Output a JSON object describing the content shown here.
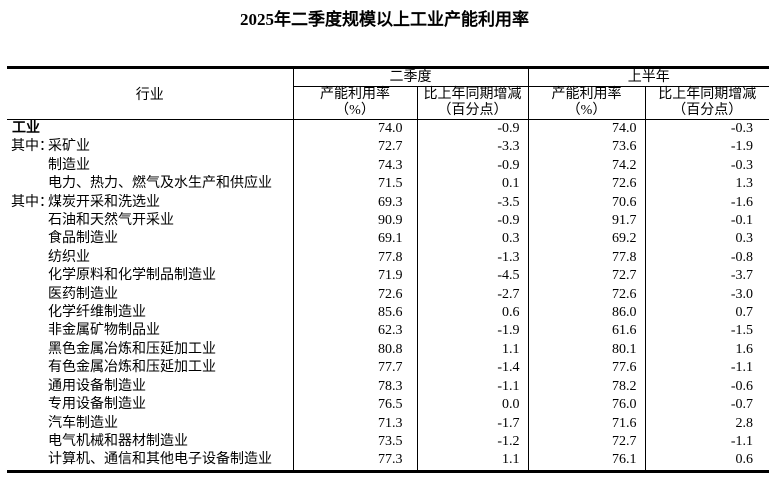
{
  "title": "2025年二季度规模以上工业产能利用率",
  "colors": {
    "text": "#000000",
    "background": "#ffffff",
    "border": "#000000"
  },
  "table": {
    "industry_header": "行业",
    "groups": [
      {
        "label": "二季度",
        "sub_headers": [
          {
            "line1": "产能利用率",
            "line2": "（%）"
          },
          {
            "line1": "比上年同期增减",
            "line2": "（百分点）"
          }
        ]
      },
      {
        "label": "上半年",
        "sub_headers": [
          {
            "line1": "产能利用率",
            "line2": "（%）"
          },
          {
            "line1": "比上年同期增减",
            "line2": "（百分点）"
          }
        ]
      }
    ],
    "rows": [
      {
        "prefix": "",
        "name": "工业",
        "bold": true,
        "flush": true,
        "values": [
          "74.0",
          "-0.9",
          "74.0",
          "-0.3"
        ]
      },
      {
        "prefix": "其中：",
        "name": "采矿业",
        "values": [
          "72.7",
          "-3.3",
          "73.6",
          "-1.9"
        ]
      },
      {
        "prefix": "",
        "name": "制造业",
        "values": [
          "74.3",
          "-0.9",
          "74.2",
          "-0.3"
        ]
      },
      {
        "prefix": "",
        "name": "电力、热力、燃气及水生产和供应业",
        "values": [
          "71.5",
          "0.1",
          "72.6",
          "1.3"
        ]
      },
      {
        "prefix": "其中：",
        "name": "煤炭开采和洗选业",
        "values": [
          "69.3",
          "-3.5",
          "70.6",
          "-1.6"
        ]
      },
      {
        "prefix": "",
        "name": "石油和天然气开采业",
        "values": [
          "90.9",
          "-0.9",
          "91.7",
          "-0.1"
        ]
      },
      {
        "prefix": "",
        "name": "食品制造业",
        "values": [
          "69.1",
          "0.3",
          "69.2",
          "0.3"
        ]
      },
      {
        "prefix": "",
        "name": "纺织业",
        "values": [
          "77.8",
          "-1.3",
          "77.8",
          "-0.8"
        ]
      },
      {
        "prefix": "",
        "name": "化学原料和化学制品制造业",
        "values": [
          "71.9",
          "-4.5",
          "72.7",
          "-3.7"
        ]
      },
      {
        "prefix": "",
        "name": "医药制造业",
        "values": [
          "72.6",
          "-2.7",
          "72.6",
          "-3.0"
        ]
      },
      {
        "prefix": "",
        "name": "化学纤维制造业",
        "values": [
          "85.6",
          "0.6",
          "86.0",
          "0.7"
        ]
      },
      {
        "prefix": "",
        "name": "非金属矿物制品业",
        "values": [
          "62.3",
          "-1.9",
          "61.6",
          "-1.5"
        ]
      },
      {
        "prefix": "",
        "name": "黑色金属冶炼和压延加工业",
        "values": [
          "80.8",
          "1.1",
          "80.1",
          "1.6"
        ]
      },
      {
        "prefix": "",
        "name": "有色金属冶炼和压延加工业",
        "values": [
          "77.7",
          "-1.4",
          "77.6",
          "-1.1"
        ]
      },
      {
        "prefix": "",
        "name": "通用设备制造业",
        "values": [
          "78.3",
          "-1.1",
          "78.2",
          "-0.6"
        ]
      },
      {
        "prefix": "",
        "name": "专用设备制造业",
        "values": [
          "76.5",
          "0.0",
          "76.0",
          "-0.7"
        ]
      },
      {
        "prefix": "",
        "name": "汽车制造业",
        "values": [
          "71.3",
          "-1.7",
          "71.6",
          "2.8"
        ]
      },
      {
        "prefix": "",
        "name": "电气机械和器材制造业",
        "values": [
          "73.5",
          "-1.2",
          "72.7",
          "-1.1"
        ]
      },
      {
        "prefix": "",
        "name": "计算机、通信和其他电子设备制造业",
        "values": [
          "77.3",
          "1.1",
          "76.1",
          "0.6"
        ]
      }
    ]
  }
}
